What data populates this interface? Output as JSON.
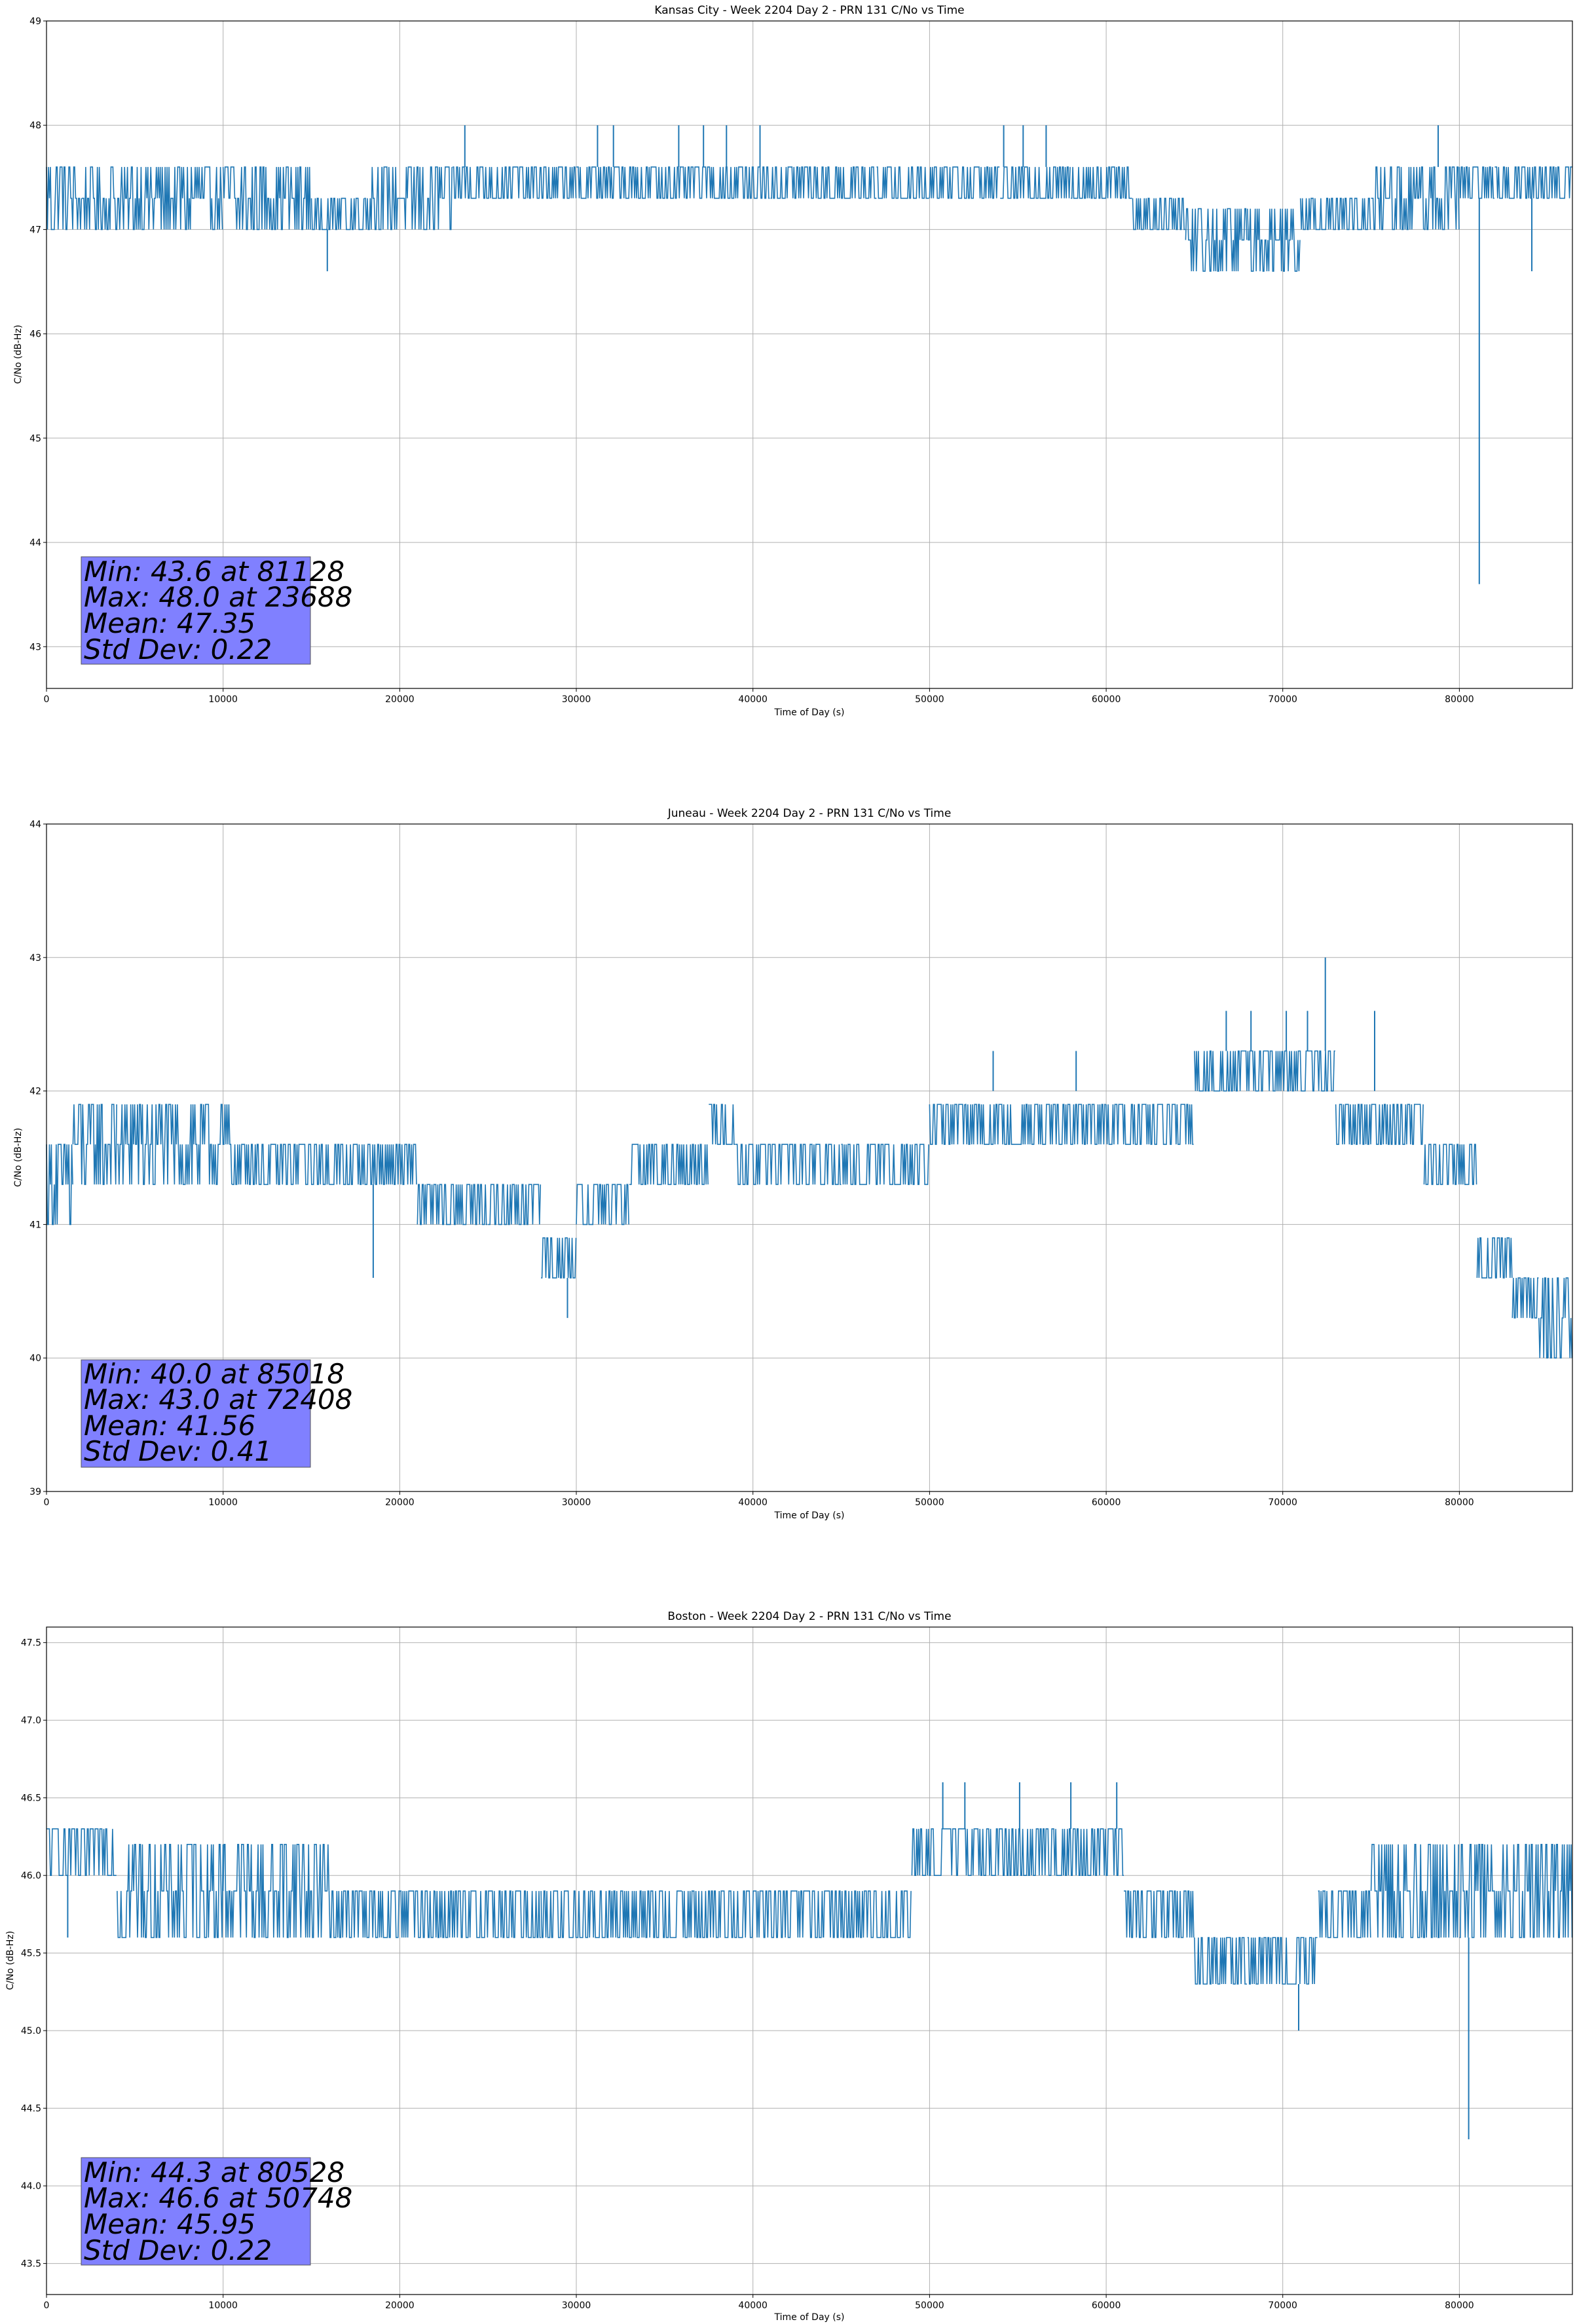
{
  "figure": {
    "background": "#ffffff",
    "line_color": "#1f77b4",
    "grid_color": "#b0b0b0",
    "stats_box_color": "#8080ff"
  },
  "chart_data": [
    {
      "type": "line",
      "title": "Kansas City - Week 2204 Day 2 - PRN 131 C/No vs Time",
      "xlabel": "Time of Day (s)",
      "ylabel": "C/No (dB-Hz)",
      "xlim": [
        0,
        86400
      ],
      "ylim": [
        42.6,
        49
      ],
      "xticks": [
        0,
        10000,
        20000,
        30000,
        40000,
        50000,
        60000,
        70000,
        80000
      ],
      "yticks": [
        43,
        44,
        45,
        46,
        47,
        48,
        49
      ],
      "ytick_decimals": 0,
      "grid": true,
      "quantization_step": 0.3,
      "segments": [
        {
          "x": [
            0,
            2000
          ],
          "band": [
            47.0,
            47.6
          ]
        },
        {
          "x": [
            2000,
            6000
          ],
          "band": [
            47.0,
            47.6
          ]
        },
        {
          "x": [
            6000,
            10000
          ],
          "band": [
            47.0,
            47.6
          ]
        },
        {
          "x": [
            10000,
            15000
          ],
          "band": [
            47.0,
            47.6
          ]
        },
        {
          "x": [
            15000,
            18000
          ],
          "band": [
            47.0,
            47.3
          ]
        },
        {
          "x": [
            18000,
            19000
          ],
          "band": [
            47.0,
            47.6
          ]
        },
        {
          "x": [
            19000,
            23000
          ],
          "band": [
            47.0,
            47.6
          ]
        },
        {
          "x": [
            23000,
            28000
          ],
          "band": [
            47.3,
            47.6
          ]
        },
        {
          "x": [
            28000,
            30000
          ],
          "band": [
            47.3,
            47.6
          ]
        },
        {
          "x": [
            30000,
            36000
          ],
          "band": [
            47.3,
            47.6
          ]
        },
        {
          "x": [
            36000,
            41000
          ],
          "band": [
            47.3,
            47.6
          ]
        },
        {
          "x": [
            41000,
            47000
          ],
          "band": [
            47.3,
            47.6
          ]
        },
        {
          "x": [
            47000,
            50000
          ],
          "band": [
            47.3,
            47.6
          ]
        },
        {
          "x": [
            50000,
            54000
          ],
          "band": [
            47.3,
            47.6
          ]
        },
        {
          "x": [
            54000,
            58000
          ],
          "band": [
            47.3,
            47.6
          ]
        },
        {
          "x": [
            58000,
            61500
          ],
          "band": [
            47.3,
            47.6
          ]
        },
        {
          "x": [
            61500,
            64500
          ],
          "band": [
            47.0,
            47.3
          ]
        },
        {
          "x": [
            64500,
            68000
          ],
          "band": [
            46.6,
            47.3
          ]
        },
        {
          "x": [
            68000,
            71000
          ],
          "band": [
            46.6,
            47.3
          ]
        },
        {
          "x": [
            71000,
            75000
          ],
          "band": [
            47.0,
            47.3
          ]
        },
        {
          "x": [
            75000,
            78000
          ],
          "band": [
            47.0,
            47.6
          ]
        },
        {
          "x": [
            78000,
            80000
          ],
          "band": [
            47.0,
            47.6
          ]
        },
        {
          "x": [
            80000,
            82000
          ],
          "band": [
            47.3,
            47.6
          ]
        },
        {
          "x": [
            82000,
            86400
          ],
          "band": [
            47.3,
            47.6
          ]
        }
      ],
      "spikes": [
        {
          "x": 15900,
          "y": 46.6
        },
        {
          "x": 23688,
          "y": 48.0
        },
        {
          "x": 31200,
          "y": 48.0
        },
        {
          "x": 32100,
          "y": 48.0
        },
        {
          "x": 35800,
          "y": 48.0
        },
        {
          "x": 37200,
          "y": 48.0
        },
        {
          "x": 38500,
          "y": 48.0
        },
        {
          "x": 40400,
          "y": 48.0
        },
        {
          "x": 54200,
          "y": 48.0
        },
        {
          "x": 55300,
          "y": 48.0
        },
        {
          "x": 56600,
          "y": 48.0
        },
        {
          "x": 78800,
          "y": 48.0
        },
        {
          "x": 81128,
          "y": 43.6
        },
        {
          "x": 84100,
          "y": 46.6
        }
      ],
      "stats": {
        "min_label": "Min: 43.6 at 81128",
        "max_label": "Max: 48.0 at 23688",
        "mean_label": "Mean: 47.35",
        "std_label": "Std Dev: 0.22"
      }
    },
    {
      "type": "line",
      "title": "Juneau - Week 2204 Day 2 - PRN 131 C/No vs Time",
      "xlabel": "Time of Day (s)",
      "ylabel": "C/No (dB-Hz)",
      "xlim": [
        0,
        86400
      ],
      "ylim": [
        39,
        44
      ],
      "xticks": [
        0,
        10000,
        20000,
        30000,
        40000,
        50000,
        60000,
        70000,
        80000
      ],
      "yticks": [
        39,
        40,
        41,
        42,
        43,
        44
      ],
      "ytick_decimals": 0,
      "grid": true,
      "quantization_step": 0.3,
      "segments": [
        {
          "x": [
            0,
            1500
          ],
          "band": [
            41.0,
            41.6
          ]
        },
        {
          "x": [
            1500,
            4000
          ],
          "band": [
            41.3,
            42.0
          ]
        },
        {
          "x": [
            4000,
            10500
          ],
          "band": [
            41.3,
            42.0
          ]
        },
        {
          "x": [
            10500,
            16000
          ],
          "band": [
            41.3,
            41.6
          ]
        },
        {
          "x": [
            16000,
            21000
          ],
          "band": [
            41.3,
            41.6
          ]
        },
        {
          "x": [
            21000,
            25000
          ],
          "band": [
            41.0,
            41.3
          ]
        },
        {
          "x": [
            25000,
            28000
          ],
          "band": [
            41.0,
            41.3
          ]
        },
        {
          "x": [
            28000,
            30000
          ],
          "band": [
            40.6,
            41.0
          ]
        },
        {
          "x": [
            30000,
            33000
          ],
          "band": [
            41.0,
            41.3
          ]
        },
        {
          "x": [
            33000,
            37500
          ],
          "band": [
            41.3,
            41.6
          ]
        },
        {
          "x": [
            37500,
            39000
          ],
          "band": [
            41.6,
            42.0
          ]
        },
        {
          "x": [
            39000,
            45000
          ],
          "band": [
            41.3,
            41.6
          ]
        },
        {
          "x": [
            45000,
            50000
          ],
          "band": [
            41.3,
            41.6
          ]
        },
        {
          "x": [
            50000,
            52000
          ],
          "band": [
            41.6,
            42.0
          ]
        },
        {
          "x": [
            52000,
            60000
          ],
          "band": [
            41.6,
            42.0
          ]
        },
        {
          "x": [
            60000,
            65000
          ],
          "band": [
            41.6,
            42.0
          ]
        },
        {
          "x": [
            65000,
            70000
          ],
          "band": [
            42.0,
            42.3
          ]
        },
        {
          "x": [
            70000,
            73000
          ],
          "band": [
            42.0,
            42.3
          ]
        },
        {
          "x": [
            73000,
            78000
          ],
          "band": [
            41.6,
            42.0
          ]
        },
        {
          "x": [
            78000,
            81000
          ],
          "band": [
            41.3,
            41.6
          ]
        },
        {
          "x": [
            81000,
            83000
          ],
          "band": [
            40.6,
            41.0
          ]
        },
        {
          "x": [
            83000,
            84500
          ],
          "band": [
            40.3,
            40.6
          ]
        },
        {
          "x": [
            84500,
            86400
          ],
          "band": [
            40.0,
            40.6
          ]
        }
      ],
      "spikes": [
        {
          "x": 18500,
          "y": 40.6
        },
        {
          "x": 29500,
          "y": 40.3
        },
        {
          "x": 53600,
          "y": 42.3
        },
        {
          "x": 58300,
          "y": 42.3
        },
        {
          "x": 66800,
          "y": 42.6
        },
        {
          "x": 68200,
          "y": 42.6
        },
        {
          "x": 70200,
          "y": 42.6
        },
        {
          "x": 71400,
          "y": 42.6
        },
        {
          "x": 72408,
          "y": 43.0
        },
        {
          "x": 75200,
          "y": 42.6
        },
        {
          "x": 85018,
          "y": 40.0
        }
      ],
      "stats": {
        "min_label": "Min: 40.0 at 85018",
        "max_label": "Max: 43.0 at 72408",
        "mean_label": "Mean: 41.56",
        "std_label": "Std Dev: 0.41"
      }
    },
    {
      "type": "line",
      "title": "Boston - Week 2204 Day 2 - PRN 131 C/No vs Time",
      "xlabel": "Time of Day (s)",
      "ylabel": "C/No (dB-Hz)",
      "xlim": [
        0,
        86400
      ],
      "ylim": [
        43.3,
        47.6
      ],
      "xticks": [
        0,
        10000,
        20000,
        30000,
        40000,
        50000,
        60000,
        70000,
        80000
      ],
      "yticks": [
        43.5,
        44.0,
        44.5,
        45.0,
        45.5,
        46.0,
        46.5,
        47.0,
        47.5
      ],
      "ytick_decimals": 1,
      "grid": true,
      "quantization_step": 0.3,
      "segments": [
        {
          "x": [
            0,
            4000
          ],
          "band": [
            46.0,
            46.3
          ]
        },
        {
          "x": [
            4000,
            10000
          ],
          "band": [
            45.6,
            46.3
          ]
        },
        {
          "x": [
            10000,
            16000
          ],
          "band": [
            45.6,
            46.3
          ]
        },
        {
          "x": [
            16000,
            22000
          ],
          "band": [
            45.6,
            46.0
          ]
        },
        {
          "x": [
            22000,
            28000
          ],
          "band": [
            45.6,
            46.0
          ]
        },
        {
          "x": [
            28000,
            36000
          ],
          "band": [
            45.6,
            46.0
          ]
        },
        {
          "x": [
            36000,
            44000
          ],
          "band": [
            45.6,
            46.0
          ]
        },
        {
          "x": [
            44000,
            49000
          ],
          "band": [
            45.6,
            46.0
          ]
        },
        {
          "x": [
            49000,
            55000
          ],
          "band": [
            46.0,
            46.3
          ]
        },
        {
          "x": [
            55000,
            61000
          ],
          "band": [
            46.0,
            46.3
          ]
        },
        {
          "x": [
            61000,
            65000
          ],
          "band": [
            45.6,
            46.0
          ]
        },
        {
          "x": [
            65000,
            68000
          ],
          "band": [
            45.3,
            45.6
          ]
        },
        {
          "x": [
            68000,
            72000
          ],
          "band": [
            45.3,
            45.6
          ]
        },
        {
          "x": [
            72000,
            75000
          ],
          "band": [
            45.6,
            46.0
          ]
        },
        {
          "x": [
            75000,
            80000
          ],
          "band": [
            45.6,
            46.3
          ]
        },
        {
          "x": [
            80000,
            86400
          ],
          "band": [
            45.6,
            46.3
          ]
        }
      ],
      "spikes": [
        {
          "x": 1200,
          "y": 45.6
        },
        {
          "x": 50748,
          "y": 46.6
        },
        {
          "x": 52000,
          "y": 46.6
        },
        {
          "x": 55100,
          "y": 46.6
        },
        {
          "x": 58000,
          "y": 46.6
        },
        {
          "x": 60600,
          "y": 46.6
        },
        {
          "x": 70900,
          "y": 45.0
        },
        {
          "x": 80528,
          "y": 44.3
        }
      ],
      "stats": {
        "min_label": "Min: 44.3 at 80528",
        "max_label": "Max: 46.6 at 50748",
        "mean_label": "Mean: 45.95",
        "std_label": "Std Dev: 0.22"
      }
    }
  ]
}
